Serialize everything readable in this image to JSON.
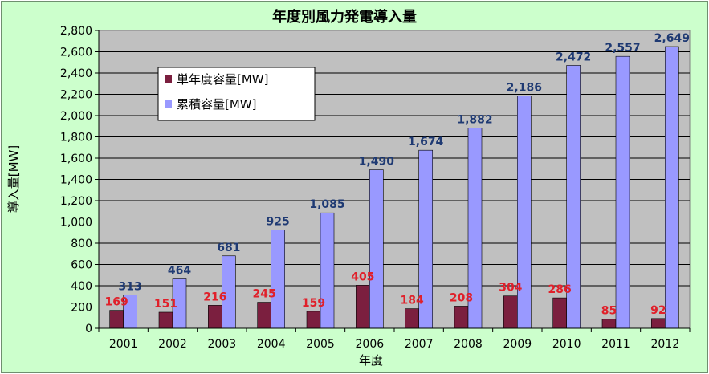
{
  "chart_data": {
    "type": "bar",
    "title": "年度別風力発電導入量",
    "xlabel": "年度",
    "ylabel": "導入量[MW]",
    "categories": [
      "2001",
      "2002",
      "2003",
      "2004",
      "2005",
      "2006",
      "2007",
      "2008",
      "2009",
      "2010",
      "2011",
      "2012"
    ],
    "series": [
      {
        "name": "単年度容量[MW]",
        "color": "#7b1f3f",
        "values": [
          169,
          151,
          216,
          245,
          159,
          405,
          184,
          208,
          304,
          286,
          85,
          92
        ],
        "labels": [
          "169",
          "151",
          "216",
          "245",
          "159",
          "405",
          "184",
          "208",
          "304",
          "286",
          "85",
          "92"
        ]
      },
      {
        "name": "累積容量[MW]",
        "color": "#9999ff",
        "values": [
          313,
          464,
          681,
          925,
          1085,
          1490,
          1674,
          1882,
          2186,
          2472,
          2557,
          2649
        ],
        "labels": [
          "313",
          "464",
          "681",
          "925",
          "1,085",
          "1,490",
          "1,674",
          "1,882",
          "2,186",
          "2,472",
          "2,557",
          "2,649"
        ]
      }
    ],
    "ylim": [
      0,
      2800
    ],
    "yticks": [
      0,
      200,
      400,
      600,
      800,
      1000,
      1200,
      1400,
      1600,
      1800,
      2000,
      2200,
      2400,
      2600,
      2800
    ],
    "ytick_labels": [
      "0",
      "200",
      "400",
      "600",
      "800",
      "1,000",
      "1,200",
      "1,400",
      "1,600",
      "1,800",
      "2,000",
      "2,200",
      "2,400",
      "2,600",
      "2,800"
    ],
    "grid": true,
    "legend": "top-left",
    "plot_bg": "#c0c0c0"
  }
}
